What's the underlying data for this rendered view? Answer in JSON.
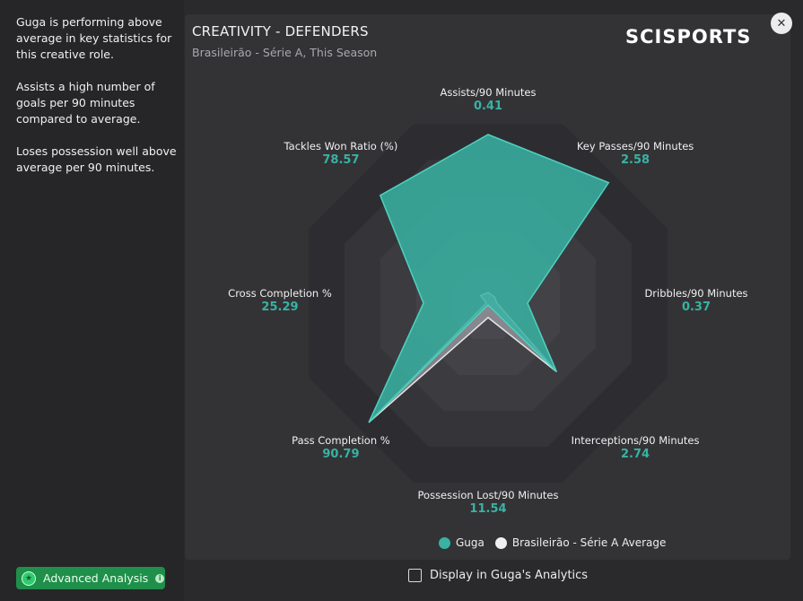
{
  "description": [
    "Guga is performing above average in key statistics for this creative role.",
    "Assists a high number of goals per 90 minutes compared to average.",
    "Loses possession well above average per 90 minutes."
  ],
  "advanced_button": "Advanced Analysis",
  "title": "CREATIVITY - DEFENDERS",
  "subtitle": "Brasileirão - Série A, This Season",
  "logo": "SCISPORTS",
  "close_icon": "close-icon",
  "colors": {
    "player": "#38b3a3",
    "average": "#bcbcc2",
    "accent_green": "#1f8f4a"
  },
  "chart_data": {
    "type": "radar",
    "title": "CREATIVITY - DEFENDERS",
    "axes": [
      {
        "label": "Assists/90 Minutes",
        "value": "0.41"
      },
      {
        "label": "Key Passes/90 Minutes",
        "value": "2.58"
      },
      {
        "label": "Dribbles/90 Minutes",
        "value": "0.37"
      },
      {
        "label": "Interceptions/90 Minutes",
        "value": "2.74"
      },
      {
        "label": "Possession Lost/90 Minutes",
        "value": "11.54"
      },
      {
        "label": "Pass Completion %",
        "value": "90.79"
      },
      {
        "label": "Cross Completion %",
        "value": "25.29"
      },
      {
        "label": "Tackles Won Ratio (%)",
        "value": "78.57"
      }
    ],
    "series": [
      {
        "name": "Guga",
        "values": [
          0.94,
          0.95,
          0.22,
          0.54,
          0.01,
          0.94,
          0.36,
          0.85
        ]
      },
      {
        "name": "Brasileirão - Série A Average",
        "values": [
          0.06,
          0.05,
          0.05,
          0.54,
          0.08,
          0.94,
          0.01,
          0.06
        ]
      }
    ]
  },
  "legend": [
    "Guga",
    "Brasileirão - Série A Average"
  ],
  "checkbox_label": "Display in Guga's Analytics"
}
